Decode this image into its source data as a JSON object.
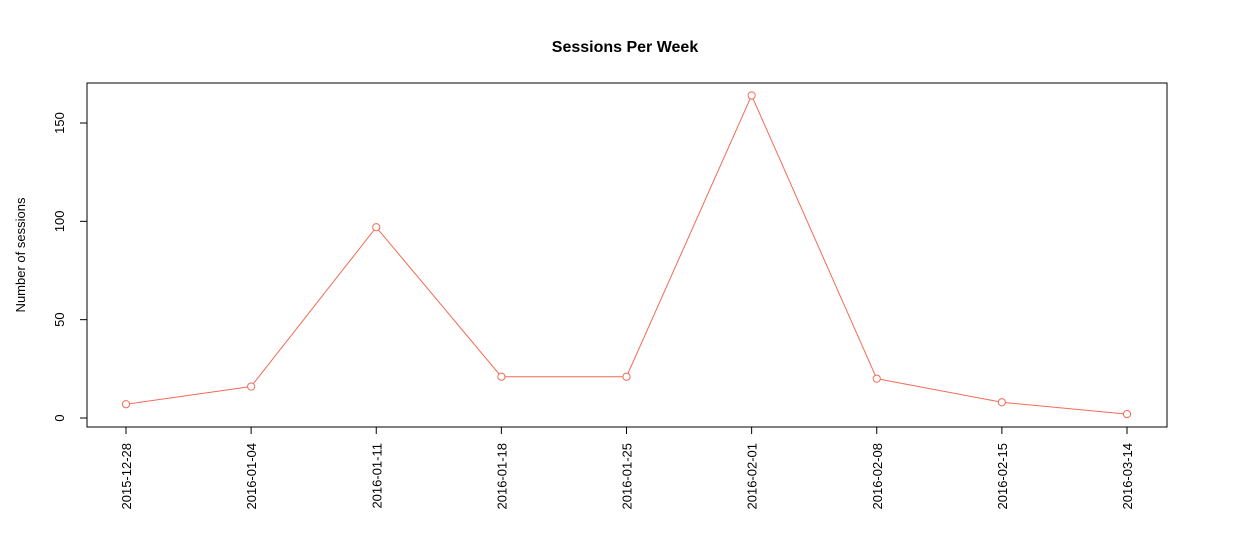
{
  "chart_data": {
    "type": "line",
    "title": "Sessions Per Week",
    "xlabel": "",
    "ylabel": "Number of sessions",
    "categories": [
      "2015-12-28",
      "2016-01-04",
      "2016-01-11",
      "2016-01-18",
      "2016-01-25",
      "2016-02-01",
      "2016-02-08",
      "2016-02-15",
      "2016-03-14"
    ],
    "series": [
      {
        "values": [
          7,
          16,
          97,
          21,
          21,
          164,
          20,
          8,
          2
        ]
      }
    ],
    "yticks": [
      0,
      50,
      100,
      150
    ],
    "ylim": [
      0,
      170
    ],
    "grid": false,
    "line_color": "#f26b57",
    "marker": "open-circle"
  }
}
